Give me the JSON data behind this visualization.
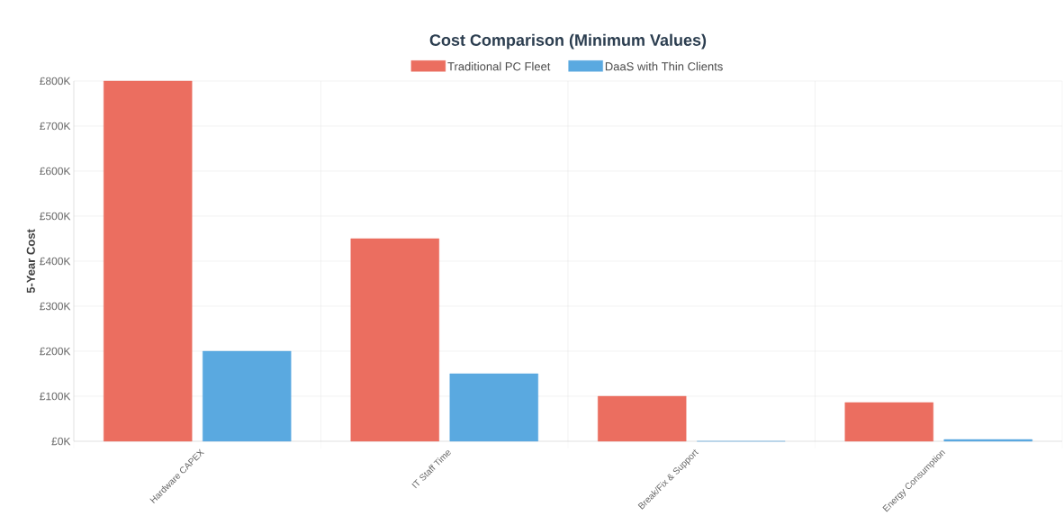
{
  "chart_data": {
    "type": "bar",
    "title": "Cost Comparison (Minimum Values)",
    "ylabel": "5-Year Cost",
    "categories": [
      "Hardware CAPEX",
      "IT Staff Time",
      "Break/Fix & Support",
      "Energy Consumption"
    ],
    "series": [
      {
        "name": "Traditional PC Fleet",
        "color": "#eb6e60",
        "values": [
          800000,
          450000,
          100000,
          86000
        ]
      },
      {
        "name": "DaaS with Thin Clients",
        "color": "#5aa9e0",
        "values": [
          200000,
          150000,
          0,
          4000
        ]
      }
    ],
    "ylim": [
      0,
      800000
    ],
    "yticks": [
      {
        "value": 0,
        "label": "£0K"
      },
      {
        "value": 100000,
        "label": "£100K"
      },
      {
        "value": 200000,
        "label": "£200K"
      },
      {
        "value": 300000,
        "label": "£300K"
      },
      {
        "value": 400000,
        "label": "£400K"
      },
      {
        "value": 500000,
        "label": "£500K"
      },
      {
        "value": 600000,
        "label": "£600K"
      },
      {
        "value": 700000,
        "label": "£700K"
      },
      {
        "value": 800000,
        "label": "£800K"
      }
    ],
    "grid": true,
    "legend": "top"
  }
}
